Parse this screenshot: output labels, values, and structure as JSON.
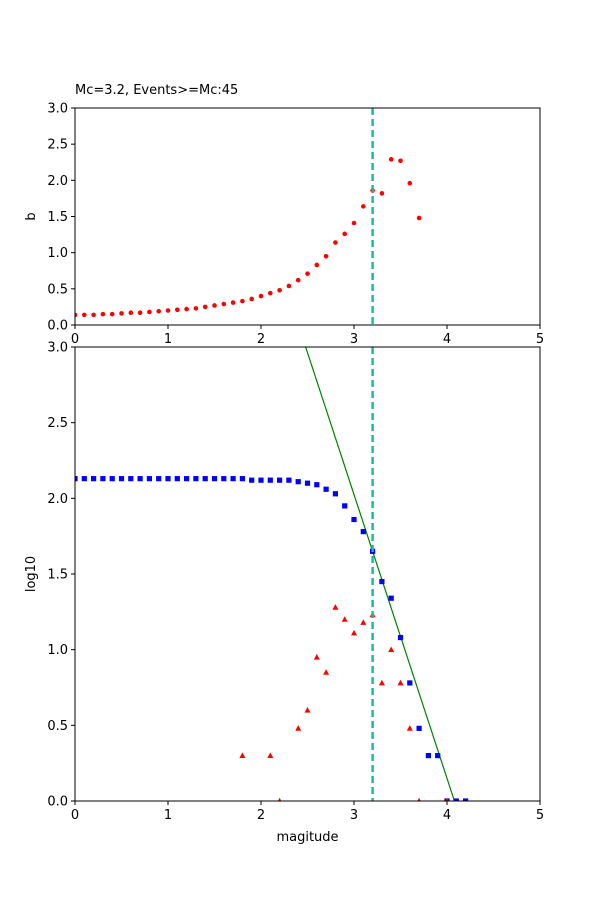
{
  "chart_data": [
    {
      "type": "scatter",
      "title": "Mc=3.2, Events>=Mc:45",
      "xlabel": "",
      "ylabel": "b",
      "xlim": [
        0,
        5
      ],
      "ylim": [
        0,
        3.0
      ],
      "xticks": [
        "0",
        "1",
        "2",
        "3",
        "4",
        "5"
      ],
      "yticks": [
        "0.0",
        "0.5",
        "1.0",
        "1.5",
        "2.0",
        "2.5",
        "3.0"
      ],
      "grid": false,
      "colors": {
        "points": "#ff0000",
        "mc_line": "#1abc9c"
      },
      "mc_line_x": 3.2,
      "series": [
        {
          "marker": "dot",
          "x": [
            0.0,
            0.1,
            0.2,
            0.3,
            0.4,
            0.5,
            0.6,
            0.7,
            0.8,
            0.9,
            1.0,
            1.1,
            1.2,
            1.3,
            1.4,
            1.5,
            1.6,
            1.7,
            1.8,
            1.9,
            2.0,
            2.1,
            2.2,
            2.3,
            2.4,
            2.5,
            2.6,
            2.7,
            2.8,
            2.9,
            3.0,
            3.1,
            3.2,
            3.3,
            3.4,
            3.5,
            3.6,
            3.7
          ],
          "y": [
            0.14,
            0.14,
            0.14,
            0.15,
            0.15,
            0.16,
            0.17,
            0.17,
            0.18,
            0.19,
            0.2,
            0.21,
            0.22,
            0.23,
            0.25,
            0.27,
            0.29,
            0.31,
            0.33,
            0.36,
            0.4,
            0.44,
            0.48,
            0.54,
            0.62,
            0.71,
            0.83,
            0.95,
            1.14,
            1.26,
            1.41,
            1.64,
            1.86,
            1.82,
            2.29,
            2.27,
            1.96,
            1.48
          ]
        }
      ]
    },
    {
      "type": "scatter",
      "title": "",
      "xlabel": "magitude",
      "ylabel": "log10",
      "xlim": [
        0,
        5
      ],
      "ylim": [
        0,
        3.0
      ],
      "xticks": [
        "0",
        "1",
        "2",
        "3",
        "4",
        "5"
      ],
      "yticks": [
        "0.0",
        "0.5",
        "1.0",
        "1.5",
        "2.0",
        "2.5",
        "3.0"
      ],
      "grid": false,
      "colors": {
        "cumulative": "#0000ff",
        "noncumulative": "#ff0000",
        "fit_line": "#008000",
        "mc_line": "#1abc9c"
      },
      "mc_line_x": 3.2,
      "fit_line": {
        "x": [
          2.48,
          4.08
        ],
        "y": [
          3.0,
          0.0
        ]
      },
      "series": [
        {
          "marker": "square",
          "x": [
            0.0,
            0.1,
            0.2,
            0.3,
            0.4,
            0.5,
            0.6,
            0.7,
            0.8,
            0.9,
            1.0,
            1.1,
            1.2,
            1.3,
            1.4,
            1.5,
            1.6,
            1.7,
            1.8,
            1.9,
            2.0,
            2.1,
            2.2,
            2.3,
            2.4,
            2.5,
            2.6,
            2.7,
            2.8,
            2.9,
            3.0,
            3.1,
            3.2,
            3.3,
            3.4,
            3.5,
            3.6,
            3.7,
            3.8,
            3.9,
            4.0,
            4.1,
            4.2
          ],
          "y": [
            2.13,
            2.13,
            2.13,
            2.13,
            2.13,
            2.13,
            2.13,
            2.13,
            2.13,
            2.13,
            2.13,
            2.13,
            2.13,
            2.13,
            2.13,
            2.13,
            2.13,
            2.13,
            2.13,
            2.12,
            2.12,
            2.12,
            2.12,
            2.12,
            2.11,
            2.1,
            2.09,
            2.06,
            2.03,
            1.95,
            1.86,
            1.78,
            1.65,
            1.45,
            1.34,
            1.08,
            0.78,
            0.48,
            0.3,
            0.3,
            0.0,
            0.0,
            0.0
          ]
        },
        {
          "marker": "triangle",
          "x": [
            1.8,
            2.1,
            2.2,
            2.4,
            2.5,
            2.6,
            2.7,
            2.8,
            2.9,
            3.0,
            3.1,
            3.2,
            3.3,
            3.4,
            3.5,
            3.6,
            3.7,
            4.0
          ],
          "y": [
            0.3,
            0.3,
            0.0,
            0.48,
            0.6,
            0.95,
            0.85,
            1.28,
            1.2,
            1.11,
            1.18,
            1.23,
            0.78,
            1.0,
            0.78,
            0.48,
            0.0,
            0.0
          ]
        }
      ]
    }
  ]
}
